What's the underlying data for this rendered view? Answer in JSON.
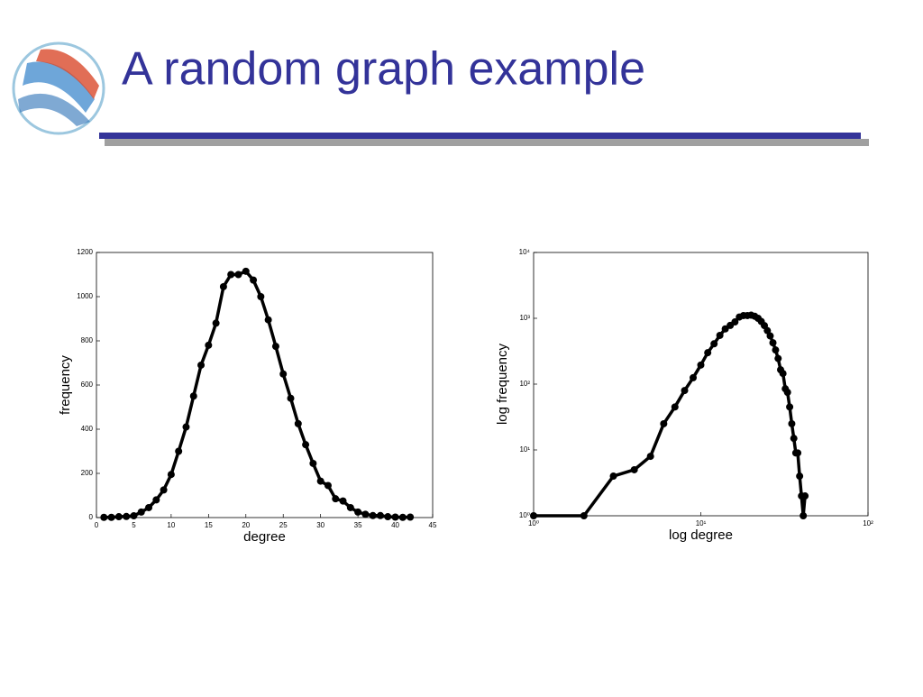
{
  "slide": {
    "title": "A random graph example"
  },
  "chart_data": [
    {
      "type": "line",
      "xlabel": "degree",
      "ylabel": "frequency",
      "color": "#000000",
      "log_x": false,
      "log_y": false,
      "x": [
        1,
        2,
        3,
        4,
        5,
        6,
        7,
        8,
        9,
        10,
        11,
        12,
        13,
        14,
        15,
        16,
        17,
        18,
        19,
        20,
        21,
        22,
        23,
        24,
        25,
        26,
        27,
        28,
        29,
        30,
        31,
        32,
        33,
        34,
        35,
        36,
        37,
        38,
        39,
        40,
        41,
        42
      ],
      "values": [
        1,
        1,
        4,
        5,
        8,
        25,
        45,
        80,
        125,
        195,
        300,
        410,
        550,
        690,
        780,
        880,
        1045,
        1100,
        1100,
        1115,
        1075,
        1000,
        895,
        775,
        650,
        540,
        425,
        330,
        245,
        165,
        145,
        85,
        75,
        45,
        25,
        15,
        9,
        9,
        4,
        2,
        1,
        2
      ],
      "xlim": [
        0,
        45
      ],
      "xticks": [
        0,
        5,
        10,
        15,
        20,
        25,
        30,
        35,
        40,
        45
      ],
      "ylim": [
        0,
        1200
      ],
      "yticks": [
        0,
        200,
        400,
        600,
        800,
        1000,
        1200
      ]
    },
    {
      "type": "line",
      "xlabel": "log degree",
      "ylabel": "log frequency",
      "color": "#000000",
      "log_x": true,
      "log_y": true,
      "x": [
        1,
        2,
        3,
        4,
        5,
        6,
        7,
        8,
        9,
        10,
        11,
        12,
        13,
        14,
        15,
        16,
        17,
        18,
        19,
        20,
        21,
        22,
        23,
        24,
        25,
        26,
        27,
        28,
        29,
        30,
        31,
        32,
        33,
        34,
        35,
        36,
        37,
        38,
        39,
        40,
        41,
        42
      ],
      "values": [
        1,
        1,
        4,
        5,
        8,
        25,
        45,
        80,
        125,
        195,
        300,
        410,
        550,
        690,
        780,
        880,
        1045,
        1100,
        1100,
        1115,
        1075,
        1000,
        895,
        775,
        650,
        540,
        425,
        330,
        245,
        165,
        145,
        85,
        75,
        45,
        25,
        15,
        9,
        9,
        4,
        2,
        1,
        2
      ],
      "xlim": [
        1,
        100
      ],
      "xticks": [
        {
          "value": 1,
          "label": "10⁰"
        },
        {
          "value": 10,
          "label": "10¹"
        },
        {
          "value": 100,
          "label": "10²"
        }
      ],
      "ylim": [
        1,
        10000
      ],
      "yticks": [
        {
          "value": 1,
          "label": "10⁰"
        },
        {
          "value": 10,
          "label": "10¹"
        },
        {
          "value": 100,
          "label": "10²"
        },
        {
          "value": 1000,
          "label": "10³"
        },
        {
          "value": 10000,
          "label": "10⁴"
        }
      ]
    }
  ]
}
